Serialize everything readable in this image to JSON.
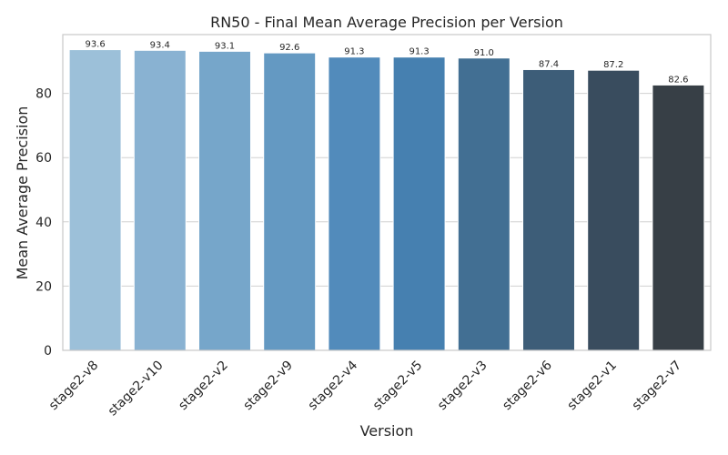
{
  "chart_data": {
    "type": "bar",
    "title": "RN50 - Final Mean Average Precision per Version",
    "xlabel": "Version",
    "ylabel": "Mean Average Precision",
    "categories": [
      "stage2-v8",
      "stage2-v10",
      "stage2-v2",
      "stage2-v9",
      "stage2-v4",
      "stage2-v5",
      "stage2-v3",
      "stage2-v6",
      "stage2-v1",
      "stage2-v7"
    ],
    "values": [
      93.6,
      93.4,
      93.1,
      92.6,
      91.3,
      91.3,
      91.0,
      87.4,
      87.2,
      82.6
    ],
    "value_labels": [
      "93.6",
      "93.4",
      "93.1",
      "92.6",
      "91.3",
      "91.3",
      "91.0",
      "87.4",
      "87.2",
      "82.6"
    ],
    "colors": [
      "#9cc0d9",
      "#89b2d2",
      "#76a6ca",
      "#6499c2",
      "#528bbb",
      "#4680b0",
      "#426f93",
      "#3d5d78",
      "#394c5e",
      "#373f46"
    ],
    "yticks": [
      0,
      20,
      40,
      60,
      80
    ],
    "ytick_labels": [
      "0",
      "20",
      "40",
      "60",
      "80"
    ],
    "ylim": [
      0,
      98.3
    ],
    "grid": true,
    "legend": "none"
  }
}
